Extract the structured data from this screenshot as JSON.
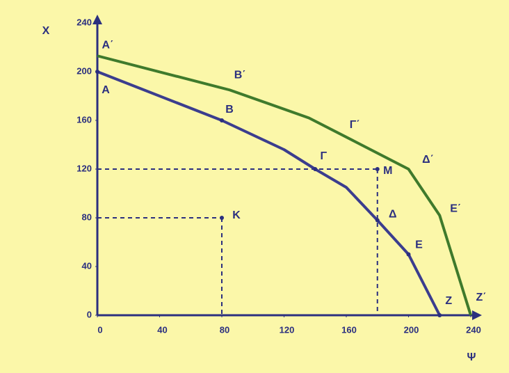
{
  "chart_data": {
    "type": "line",
    "x_label": "Ψ",
    "y_label": "X",
    "xlim": [
      0,
      240
    ],
    "ylim": [
      0,
      240
    ],
    "xticks": [
      0,
      40,
      80,
      120,
      160,
      200,
      240
    ],
    "yticks": [
      0,
      40,
      80,
      120,
      160,
      200,
      240
    ],
    "series": [
      {
        "color": "#3b3d8e",
        "x": [
          0,
          80,
          120,
          140,
          160,
          180,
          200,
          220
        ],
        "values": [
          200,
          160,
          136,
          120,
          105,
          78,
          50,
          0
        ],
        "point_labels": [
          "A",
          "B",
          null,
          "Γ",
          null,
          "Δ",
          "E",
          "Z"
        ]
      },
      {
        "color": "#3f7a2c",
        "x": [
          0,
          85,
          136,
          165,
          200,
          220,
          240
        ],
        "values": [
          213,
          185,
          162,
          143,
          120,
          82,
          0
        ],
        "point_labels": [
          "A΄",
          "B΄",
          null,
          "Γ΄",
          "Δ΄",
          "E΄",
          "Z΄"
        ]
      }
    ],
    "points": [
      {
        "label": "K",
        "x": 80,
        "y": 80
      },
      {
        "label": "M",
        "x": 180,
        "y": 120
      }
    ]
  }
}
